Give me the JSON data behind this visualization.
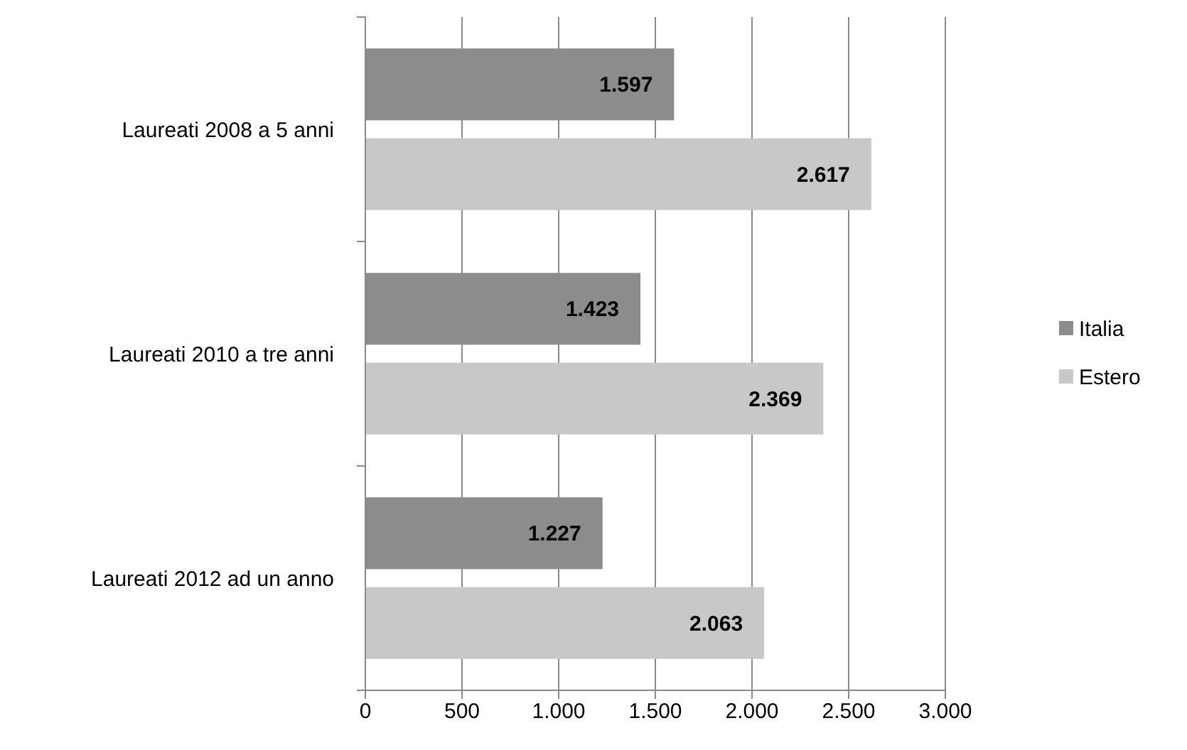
{
  "chart_data": {
    "type": "bar",
    "orientation": "horizontal",
    "categories": [
      "Laureati 2008 a 5 anni",
      "Laureati 2010 a tre anni",
      "Laureati 2012 ad un anno"
    ],
    "series": [
      {
        "name": "Italia",
        "color": "#8c8c8c",
        "values": [
          1597,
          1423,
          1227
        ],
        "value_labels": [
          "1.597",
          "1.423",
          "1.227"
        ]
      },
      {
        "name": "Estero",
        "color": "#c8c8c8",
        "values": [
          2617,
          2369,
          2063
        ],
        "value_labels": [
          "2.617",
          "2.369",
          "2.063"
        ]
      }
    ],
    "xlim": [
      0,
      3000
    ],
    "xticks": [
      0,
      500,
      {
        "value": 1000,
        "label": "1.000"
      },
      {
        "value": 1500,
        "label": "1.500"
      },
      {
        "value": 2000,
        "label": "2.000"
      },
      {
        "value": 2500,
        "label": "2.500"
      },
      {
        "value": 3000,
        "label": "3.000"
      }
    ],
    "grid": "x",
    "legend": "right"
  }
}
